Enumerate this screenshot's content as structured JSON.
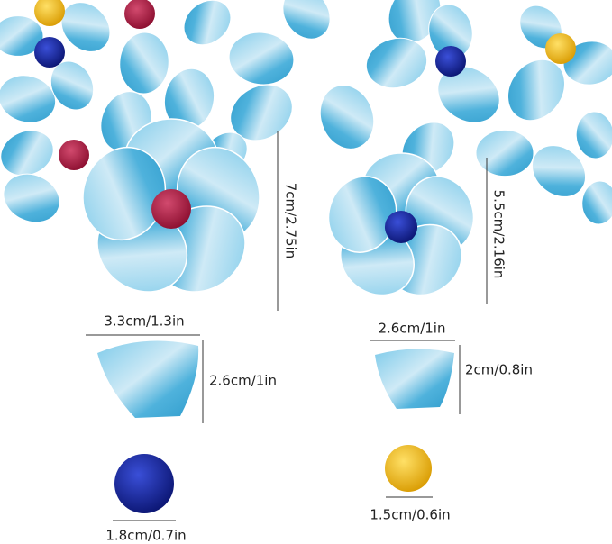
{
  "annotations": {
    "flower_large_height": "7cm/2.75in",
    "flower_small_height": "5.5cm/2.16in",
    "petal_large_width": "3.3cm/1.3in",
    "petal_large_height": "2.6cm/1in",
    "petal_small_width": "2.6cm/1in",
    "petal_small_height": "2cm/0.8in",
    "gem_large": "1.8cm/0.7in",
    "gem_small": "1.5cm/0.6in"
  }
}
